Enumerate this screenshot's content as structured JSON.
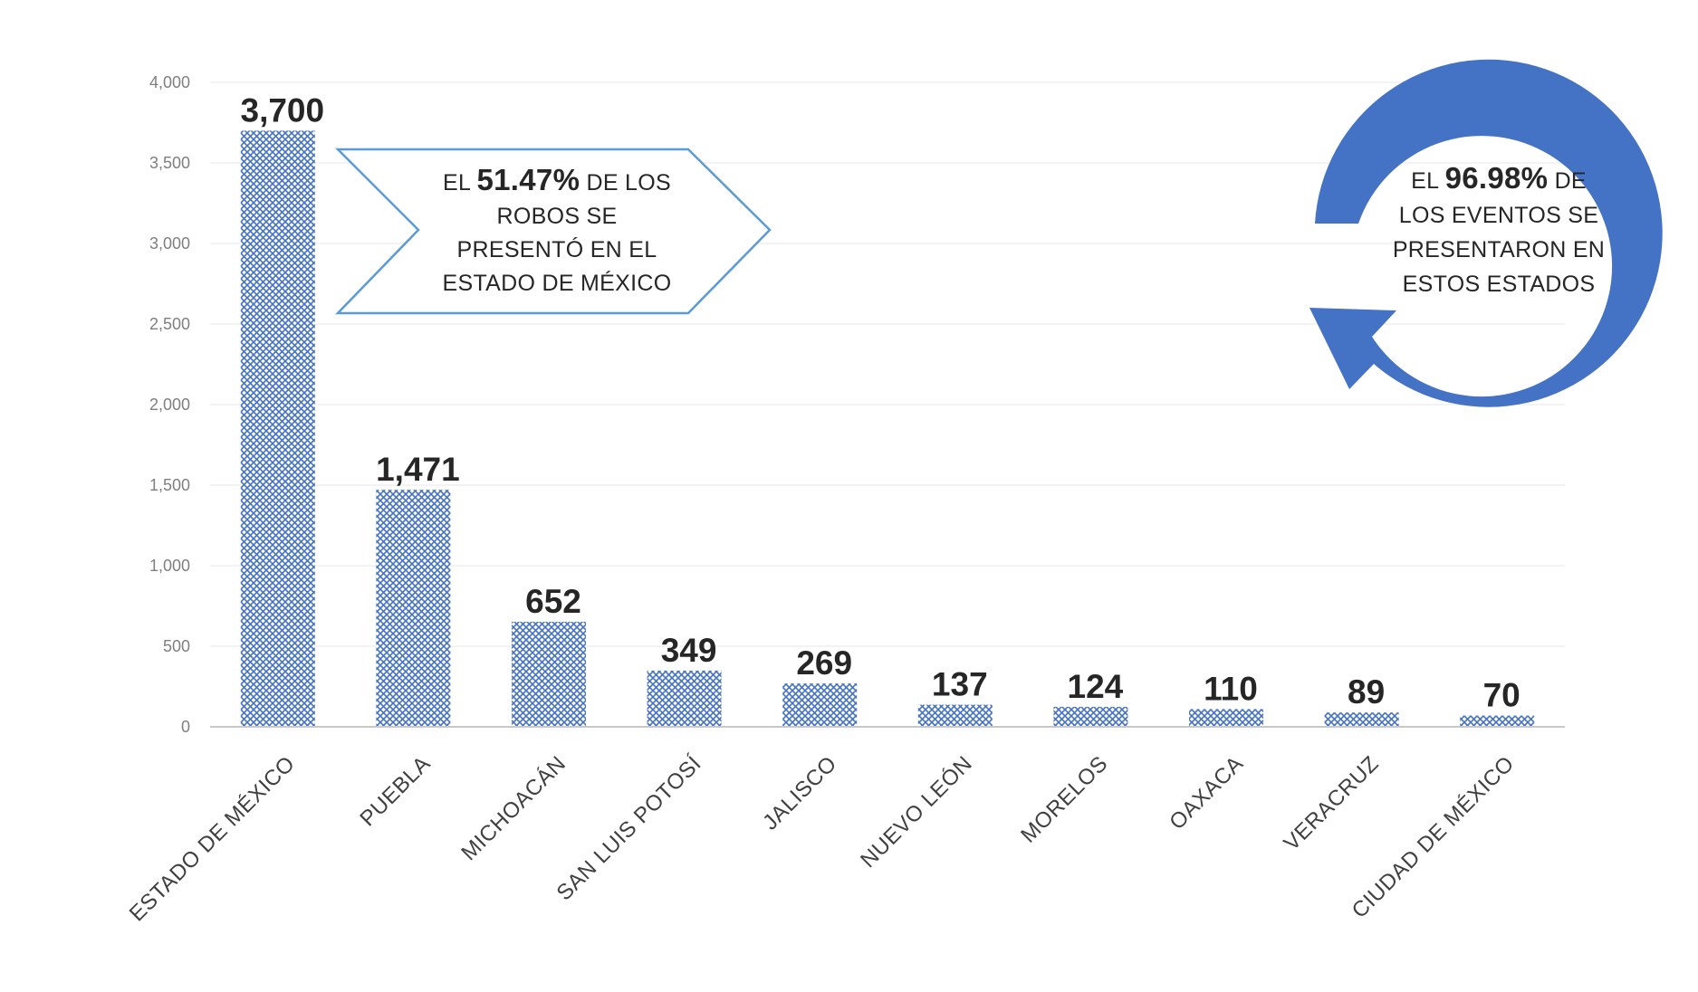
{
  "chart_data": {
    "type": "bar",
    "categories": [
      "ESTADO DE MÉXICO",
      "PUEBLA",
      "MICHOACÁN",
      "SAN LUIS POTOSÍ",
      "JALISCO",
      "NUEVO LEÓN",
      "MORELOS",
      "OAXACA",
      "VERACRUZ",
      "CIUDAD DE MÉXICO"
    ],
    "values": [
      3700,
      1471,
      652,
      349,
      269,
      137,
      124,
      110,
      89,
      70
    ],
    "value_labels": [
      "3,700",
      "1,471",
      "652",
      "349",
      "269",
      "137",
      "124",
      "110",
      "89",
      "70"
    ],
    "ylim": [
      0,
      4000
    ],
    "yticks": [
      0,
      500,
      1000,
      1500,
      2000,
      2500,
      3000,
      3500,
      4000
    ],
    "ytick_labels": [
      "0",
      "500",
      "1,000",
      "1,500",
      "2,000",
      "2,500",
      "3,000",
      "3,500",
      "4,000"
    ],
    "grid": true,
    "bar_color": "#4472c4",
    "title": "",
    "xlabel": "",
    "ylabel": ""
  },
  "annotations": {
    "left_callout": {
      "prefix": "EL ",
      "highlight": "51.47%",
      "suffix": " DE LOS",
      "line2": "ROBOS SE",
      "line3": "PRESENTÓ EN EL",
      "line4": "ESTADO DE MÉXICO"
    },
    "right_callout": {
      "prefix": "EL ",
      "highlight": "96.98%",
      "suffix": " DE",
      "line2": "LOS EVENTOS SE",
      "line3": "PRESENTARON EN",
      "line4": "ESTOS ESTADOS"
    },
    "arrow_color": "#5b9bd5",
    "cycle_color": "#4472c4"
  }
}
